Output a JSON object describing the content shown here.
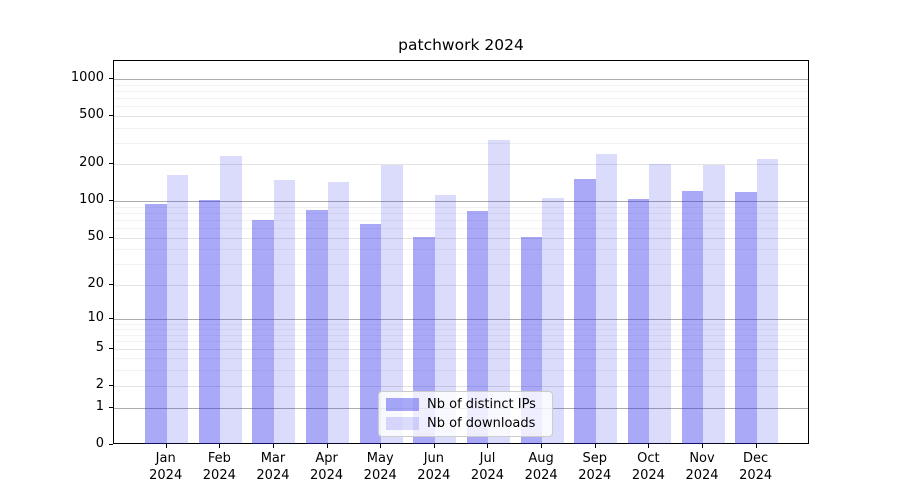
{
  "title": "patchwork 2024",
  "chart_data": {
    "type": "bar",
    "title": "patchwork 2024",
    "yscale": "symlog",
    "ylim": [
      0,
      1400
    ],
    "grid": true,
    "yticks": [
      0,
      1,
      2,
      5,
      10,
      20,
      50,
      100,
      200,
      500,
      1000
    ],
    "categories": [
      "Jan",
      "Feb",
      "Mar",
      "Apr",
      "May",
      "Jun",
      "Jul",
      "Aug",
      "Sep",
      "Oct",
      "Nov",
      "Dec"
    ],
    "year": "2024",
    "series": [
      {
        "name": "Nb of distinct IPs",
        "color_hex": "#a9a9f7",
        "color_rgba": "rgba(40,40,235,0.40)",
        "values": [
          95,
          102,
          70,
          85,
          65,
          51,
          83,
          51,
          153,
          103,
          121,
          119
        ]
      },
      {
        "name": "Nb of downloads",
        "color_hex": "#dbdbf9",
        "color_rgba": "rgba(40,40,235,0.17)",
        "values": [
          163,
          235,
          150,
          144,
          197,
          113,
          315,
          106,
          243,
          203,
          196,
          222
        ]
      }
    ],
    "legend": {
      "position": "lower center",
      "entries": [
        "Nb of distinct IPs",
        "Nb of downloads"
      ]
    }
  },
  "colors": {
    "background": "#ffffff",
    "grid_major": "#ababab",
    "grid_mid": "#e3e3e3",
    "grid_minor": "#f2f2f2",
    "spine": "#000000",
    "text": "#000000",
    "legend_border": "#cccccc"
  }
}
